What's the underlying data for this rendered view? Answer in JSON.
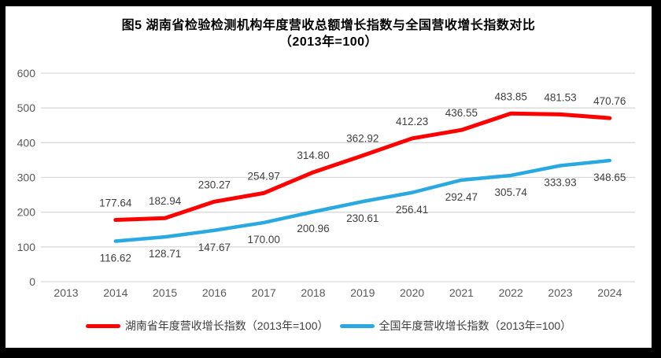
{
  "frame": {
    "border_color": "#000000",
    "background_color": "#ffffff"
  },
  "chart_data": {
    "type": "line",
    "title": "图5 湖南省检验检测机构年度营收总额增长指数与全国营收增长指数对比",
    "subtitle": "（2013年=100）",
    "x_categories": [
      "2013",
      "2014",
      "2015",
      "2016",
      "2017",
      "2018",
      "2019",
      "2020",
      "2021",
      "2022",
      "2023",
      "2024"
    ],
    "ylim": [
      0,
      600
    ],
    "yticks": [
      "0",
      "100",
      "200",
      "300",
      "400",
      "500",
      "600"
    ],
    "grid": true,
    "legend_position": "bottom",
    "series": [
      {
        "name": "湖南省年度营收增长指数（2013年=100）",
        "color": "#FF0000",
        "label_position": "above",
        "x": [
          "2014",
          "2015",
          "2016",
          "2017",
          "2018",
          "2019",
          "2020",
          "2021",
          "2022",
          "2023",
          "2024"
        ],
        "values": [
          177.64,
          182.94,
          230.27,
          254.97,
          314.8,
          362.92,
          412.23,
          436.55,
          483.85,
          481.53,
          470.76
        ],
        "labels": [
          "177.64",
          "182.94",
          "230.27",
          "254.97",
          "314.80",
          "362.92",
          "412.23",
          "436.55",
          "483.85",
          "481.53",
          "470.76"
        ]
      },
      {
        "name": "全国年度营收增长指数（2013年=100）",
        "color": "#29A9E0",
        "label_position": "below",
        "x": [
          "2014",
          "2015",
          "2016",
          "2017",
          "2018",
          "2019",
          "2020",
          "2021",
          "2022",
          "2023",
          "2024"
        ],
        "values": [
          116.62,
          128.71,
          147.67,
          170.0,
          200.96,
          230.61,
          256.41,
          292.47,
          305.74,
          333.93,
          348.65
        ],
        "labels": [
          "116.62",
          "128.71",
          "147.67",
          "170.00",
          "200.96",
          "230.61",
          "256.41",
          "292.47",
          "305.74",
          "333.93",
          "348.65"
        ]
      }
    ],
    "colors": {
      "gridline": "#D9D9D9",
      "axis_label": "#595959",
      "data_label": "#3F3F3F"
    }
  }
}
